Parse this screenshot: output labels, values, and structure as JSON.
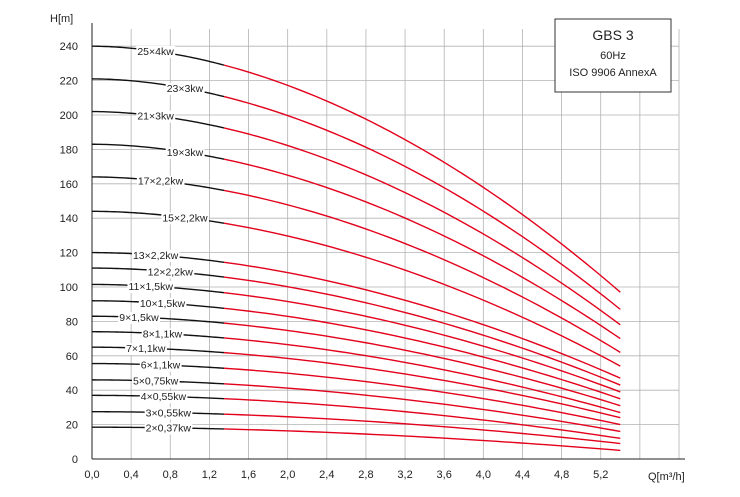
{
  "chart_data": {
    "type": "line",
    "xlabel": "Q[m³/h]",
    "ylabel": "H[m]",
    "xlim": [
      0,
      6.0
    ],
    "ylim": [
      0,
      250
    ],
    "x_ticks": [
      "0,0",
      "0,4",
      "0,8",
      "1,2",
      "1,6",
      "2,0",
      "2,4",
      "2,8",
      "3,2",
      "3,6",
      "4,0",
      "4,4",
      "4,8",
      "5,2"
    ],
    "y_ticks": [
      "0",
      "20",
      "40",
      "60",
      "80",
      "100",
      "120",
      "140",
      "160",
      "180",
      "200",
      "220",
      "240"
    ],
    "grid": true,
    "colors": {
      "grid": "#b3b3b3",
      "black_segment": "#111111",
      "red_segment": "#e3001b"
    },
    "recommended_range_start_q": 1.35,
    "end_q": 5.4,
    "info_box": {
      "title": "GBS 3",
      "line1": "60Hz",
      "line2": "ISO 9906 AnnexA"
    },
    "series": [
      {
        "name": "2×0,37kw",
        "label": "2×0,37kw",
        "shutoff_h": 18.5,
        "end_h": 5
      },
      {
        "name": "3×0,55kw",
        "label": "3×0,55kw",
        "shutoff_h": 27.5,
        "end_h": 9
      },
      {
        "name": "4×0,55kw",
        "label": "4×0,55kw",
        "shutoff_h": 37,
        "end_h": 12
      },
      {
        "name": "5×0,75kw",
        "label": "5×0,75kw",
        "shutoff_h": 46,
        "end_h": 16
      },
      {
        "name": "6×1,1kw",
        "label": "6×1,1kw",
        "shutoff_h": 55.5,
        "end_h": 20
      },
      {
        "name": "7×1,1kw",
        "label": "7×1,1kw",
        "shutoff_h": 65,
        "end_h": 24
      },
      {
        "name": "8×1,1kw",
        "label": "8×1,1kw",
        "shutoff_h": 74,
        "end_h": 27
      },
      {
        "name": "9×1,5kw",
        "label": "9×1,5kw",
        "shutoff_h": 83,
        "end_h": 31
      },
      {
        "name": "10×1,5kw",
        "label": "10×1,5kw",
        "shutoff_h": 92,
        "end_h": 35
      },
      {
        "name": "11×1,5kw",
        "label": "11×1,5kw",
        "shutoff_h": 101.5,
        "end_h": 39
      },
      {
        "name": "12×2,2kw",
        "label": "12×2,2kw",
        "shutoff_h": 111,
        "end_h": 43
      },
      {
        "name": "13×2,2kw",
        "label": "13×2,2kw",
        "shutoff_h": 120,
        "end_h": 47
      },
      {
        "name": "15×2,2kw",
        "label": "15×2,2kw",
        "shutoff_h": 144,
        "end_h": 54
      },
      {
        "name": "17×2,2kw",
        "label": "17×2,2kw",
        "shutoff_h": 164,
        "end_h": 62
      },
      {
        "name": "19×3kw",
        "label": "19×3kw",
        "shutoff_h": 183,
        "end_h": 70
      },
      {
        "name": "21×3kw",
        "label": "21×3kw",
        "shutoff_h": 202,
        "end_h": 78
      },
      {
        "name": "23×3kw",
        "label": "23×3kw",
        "shutoff_h": 221,
        "end_h": 87
      },
      {
        "name": "25×4kw",
        "label": "25×4kw",
        "shutoff_h": 240,
        "end_h": 97
      }
    ]
  }
}
